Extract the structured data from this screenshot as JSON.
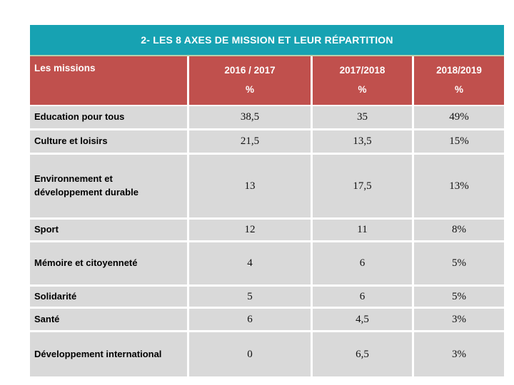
{
  "title_bar": {
    "text": "2- LES 8 AXES DE MISSION ET LEUR RÉPARTITION"
  },
  "table": {
    "header": {
      "label_column": "Les missions",
      "columns": [
        {
          "period": "2016 / 2017",
          "unit": "%"
        },
        {
          "period": "2017/2018",
          "unit": "%"
        },
        {
          "period": "2018/2019",
          "unit": "%"
        }
      ]
    },
    "rows": [
      {
        "label": "Education pour tous",
        "values": [
          "38,5",
          "35",
          "49%"
        ]
      },
      {
        "label": "Culture et loisirs",
        "values": [
          "21,5",
          "13,5",
          "15%"
        ]
      },
      {
        "label": "Environnement et développement durable",
        "values": [
          "13",
          "17,5",
          "13%"
        ]
      },
      {
        "label": "Sport",
        "values": [
          "12",
          "11",
          "8%"
        ]
      },
      {
        "label": "Mémoire et citoyenneté",
        "values": [
          "4",
          "6",
          "5%"
        ]
      },
      {
        "label": "Solidarité",
        "values": [
          "5",
          "6",
          "5%"
        ]
      },
      {
        "label": "Santé",
        "values": [
          "6",
          "4,5",
          "3%"
        ]
      },
      {
        "label": "Développement international",
        "values": [
          "0",
          "6,5",
          "3%"
        ]
      }
    ]
  },
  "chart_data": {
    "type": "table",
    "title": "2- LES 8 AXES DE MISSION ET LEUR RÉPARTITION",
    "columns": [
      "Les missions",
      "2016 / 2017 %",
      "2017/2018 %",
      "2018/2019 %"
    ],
    "categories": [
      "Education pour tous",
      "Culture et loisirs",
      "Environnement et développement durable",
      "Sport",
      "Mémoire et citoyenneté",
      "Solidarité",
      "Santé",
      "Développement international"
    ],
    "series": [
      {
        "name": "2016 / 2017 %",
        "values": [
          38.5,
          21.5,
          13,
          12,
          4,
          5,
          6,
          0
        ]
      },
      {
        "name": "2017/2018 %",
        "values": [
          35,
          13.5,
          17.5,
          11,
          6,
          6,
          4.5,
          6.5
        ]
      },
      {
        "name": "2018/2019 %",
        "values": [
          49,
          15,
          13,
          8,
          5,
          5,
          3,
          3
        ]
      }
    ]
  },
  "colors": {
    "title_bar_bg": "#17A2B2",
    "header_bg": "#C0504D",
    "row_bg": "#D9D9D9",
    "divider": "#B7D0AA",
    "header_text": "#FFFFFF",
    "label_text": "#000000",
    "value_text": "#111111",
    "page_bg": "#FFFFFF"
  }
}
